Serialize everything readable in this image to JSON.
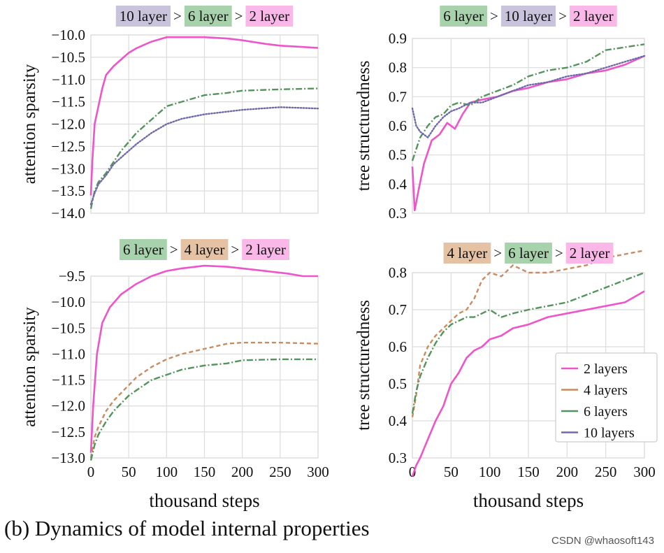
{
  "caption": "(b) Dynamics of model internal properties",
  "watermark": "CSDN @whaosoft143",
  "colors": {
    "2": "#ee55c8",
    "4": "#c98b60",
    "6": "#55935d",
    "10": "#6e6aa8",
    "bg2": "#f9b8e8",
    "bg4": "#e6c2a5",
    "bg6": "#a8d2ac",
    "bg10": "#c9c3dc"
  },
  "chart_data": [
    {
      "type": "line",
      "id": "tl",
      "ylabel": "attention sparsity",
      "xlabel": "",
      "xlim": [
        0,
        300
      ],
      "ylim": [
        -14.0,
        -10.0
      ],
      "xticks": [],
      "yticks": [
        -10.0,
        -10.5,
        -11.0,
        -11.5,
        -12.0,
        -12.5,
        -13.0,
        -13.5,
        -14.0
      ],
      "ytick_labels": [
        "−10.0",
        "−10.5",
        "−11.0",
        "−11.5",
        "−12.0",
        "−12.5",
        "−13.0",
        "−13.5",
        "−14.0"
      ],
      "title_parts": [
        {
          "text": "10 layer",
          "series": "10"
        },
        {
          "text": ">",
          "series": null
        },
        {
          "text": "6 layer",
          "series": "6"
        },
        {
          "text": ">",
          "series": null
        },
        {
          "text": "2 layer",
          "series": "2"
        }
      ],
      "series": [
        {
          "key": "2",
          "style": "solid",
          "x": [
            0,
            2,
            5,
            10,
            15,
            20,
            30,
            40,
            50,
            60,
            80,
            100,
            120,
            150,
            180,
            200,
            230,
            250,
            280,
            300
          ],
          "y": [
            -13.6,
            -12.8,
            -12.0,
            -11.6,
            -11.2,
            -10.9,
            -10.7,
            -10.55,
            -10.4,
            -10.3,
            -10.15,
            -10.05,
            -10.05,
            -10.05,
            -10.08,
            -10.12,
            -10.2,
            -10.24,
            -10.27,
            -10.29
          ]
        },
        {
          "key": "6",
          "style": "dashdot",
          "x": [
            0,
            5,
            10,
            20,
            30,
            40,
            50,
            60,
            80,
            100,
            120,
            150,
            180,
            200,
            250,
            300
          ],
          "y": [
            -13.9,
            -13.5,
            -13.3,
            -13.1,
            -12.85,
            -12.6,
            -12.4,
            -12.2,
            -11.9,
            -11.6,
            -11.5,
            -11.35,
            -11.3,
            -11.25,
            -11.22,
            -11.2
          ]
        },
        {
          "key": "10",
          "style": "dotted",
          "x": [
            0,
            5,
            10,
            20,
            30,
            40,
            50,
            60,
            80,
            100,
            120,
            150,
            180,
            200,
            250,
            300
          ],
          "y": [
            -13.8,
            -13.55,
            -13.35,
            -13.15,
            -12.9,
            -12.75,
            -12.6,
            -12.45,
            -12.2,
            -12.0,
            -11.88,
            -11.78,
            -11.72,
            -11.68,
            -11.62,
            -11.65
          ]
        }
      ]
    },
    {
      "type": "line",
      "id": "tr",
      "ylabel": "tree structuredness",
      "xlabel": "",
      "xlim": [
        0,
        300
      ],
      "ylim": [
        0.3,
        0.9
      ],
      "xticks": [],
      "yticks": [
        0.3,
        0.4,
        0.5,
        0.6,
        0.7,
        0.8,
        0.9
      ],
      "ytick_labels": [
        "0.3",
        "0.4",
        "0.5",
        "0.6",
        "0.7",
        "0.8",
        "0.9"
      ],
      "title_parts": [
        {
          "text": "6 layer",
          "series": "6"
        },
        {
          "text": ">",
          "series": null
        },
        {
          "text": "10 layer",
          "series": "10"
        },
        {
          "text": ">",
          "series": null
        },
        {
          "text": "2 layer",
          "series": "2"
        }
      ],
      "series": [
        {
          "key": "2",
          "style": "solid",
          "x": [
            0,
            3,
            8,
            15,
            25,
            35,
            45,
            55,
            65,
            75,
            90,
            110,
            130,
            150,
            175,
            200,
            225,
            250,
            275,
            300
          ],
          "y": [
            0.46,
            0.31,
            0.38,
            0.47,
            0.55,
            0.57,
            0.61,
            0.59,
            0.64,
            0.68,
            0.69,
            0.7,
            0.72,
            0.73,
            0.75,
            0.76,
            0.78,
            0.79,
            0.81,
            0.84
          ]
        },
        {
          "key": "6",
          "style": "dashdot",
          "x": [
            0,
            5,
            10,
            20,
            30,
            40,
            50,
            60,
            75,
            90,
            110,
            130,
            150,
            175,
            200,
            225,
            250,
            275,
            300
          ],
          "y": [
            0.48,
            0.52,
            0.56,
            0.6,
            0.63,
            0.64,
            0.67,
            0.68,
            0.67,
            0.7,
            0.72,
            0.74,
            0.77,
            0.79,
            0.8,
            0.82,
            0.86,
            0.87,
            0.88
          ]
        },
        {
          "key": "10",
          "style": "dotted",
          "x": [
            0,
            5,
            10,
            20,
            30,
            40,
            50,
            60,
            75,
            90,
            110,
            130,
            150,
            175,
            200,
            225,
            250,
            275,
            300
          ],
          "y": [
            0.66,
            0.6,
            0.58,
            0.56,
            0.6,
            0.63,
            0.65,
            0.66,
            0.68,
            0.68,
            0.7,
            0.72,
            0.74,
            0.75,
            0.77,
            0.78,
            0.8,
            0.82,
            0.84
          ]
        }
      ]
    },
    {
      "type": "line",
      "id": "bl",
      "ylabel": "attention sparsity",
      "xlabel": "thousand steps",
      "xlim": [
        0,
        300
      ],
      "ylim": [
        -13.0,
        -9.5
      ],
      "xticks": [
        0,
        50,
        100,
        150,
        200,
        250,
        300
      ],
      "yticks": [
        -9.5,
        -10.0,
        -10.5,
        -11.0,
        -11.5,
        -12.0,
        -12.5,
        -13.0
      ],
      "ytick_labels": [
        "−9.5",
        "−10.0",
        "−10.5",
        "−11.0",
        "−11.5",
        "−12.0",
        "−12.5",
        "−13.0"
      ],
      "title_parts": [
        {
          "text": "6 layer",
          "series": "6"
        },
        {
          "text": ">",
          "series": null
        },
        {
          "text": "4 layer",
          "series": "4"
        },
        {
          "text": ">",
          "series": null
        },
        {
          "text": "2 layer",
          "series": "2"
        }
      ],
      "series": [
        {
          "key": "2",
          "style": "solid",
          "x": [
            0,
            3,
            8,
            15,
            25,
            40,
            60,
            80,
            100,
            120,
            150,
            180,
            200,
            230,
            260,
            280,
            300
          ],
          "y": [
            -12.9,
            -12.0,
            -11.0,
            -10.4,
            -10.1,
            -9.85,
            -9.65,
            -9.5,
            -9.4,
            -9.35,
            -9.3,
            -9.32,
            -9.35,
            -9.4,
            -9.45,
            -9.5,
            -9.5
          ]
        },
        {
          "key": "4",
          "style": "dashed",
          "x": [
            0,
            5,
            10,
            20,
            30,
            40,
            50,
            60,
            80,
            100,
            120,
            150,
            180,
            200,
            250,
            300
          ],
          "y": [
            -13.0,
            -12.6,
            -12.4,
            -12.1,
            -11.9,
            -11.75,
            -11.6,
            -11.45,
            -11.25,
            -11.1,
            -11.0,
            -10.9,
            -10.8,
            -10.78,
            -10.78,
            -10.8
          ]
        },
        {
          "key": "6",
          "style": "dashdot",
          "x": [
            0,
            5,
            10,
            20,
            30,
            40,
            50,
            60,
            80,
            100,
            120,
            150,
            180,
            200,
            250,
            300
          ],
          "y": [
            -13.05,
            -12.75,
            -12.55,
            -12.3,
            -12.1,
            -11.95,
            -11.8,
            -11.7,
            -11.5,
            -11.4,
            -11.3,
            -11.22,
            -11.18,
            -11.12,
            -11.1,
            -11.1
          ]
        }
      ]
    },
    {
      "type": "line",
      "id": "br",
      "ylabel": "tree structuredness",
      "xlabel": "thousand steps",
      "xlim": [
        0,
        300
      ],
      "ylim": [
        0.3,
        0.8
      ],
      "xticks": [
        0,
        50,
        100,
        150,
        200,
        250,
        300
      ],
      "yticks": [
        0.3,
        0.4,
        0.5,
        0.6,
        0.7,
        0.8
      ],
      "ytick_labels": [
        "0.3",
        "0.4",
        "0.5",
        "0.6",
        "0.7",
        "0.8"
      ],
      "title_parts": [
        {
          "text": "4 layer",
          "series": "4"
        },
        {
          "text": ">",
          "series": null
        },
        {
          "text": "6 layer",
          "series": "6"
        },
        {
          "text": ">",
          "series": null
        },
        {
          "text": "2 layer",
          "series": "2"
        }
      ],
      "legend": {
        "position": "lower-right",
        "entries": [
          {
            "label": "2 layers",
            "key": "2"
          },
          {
            "label": "4 layers",
            "key": "4"
          },
          {
            "label": "6 layers",
            "key": "6"
          },
          {
            "label": "10 layers",
            "key": "10"
          }
        ]
      },
      "series": [
        {
          "key": "2",
          "style": "solid",
          "x": [
            0,
            5,
            10,
            20,
            30,
            40,
            50,
            60,
            70,
            80,
            90,
            100,
            115,
            130,
            150,
            175,
            200,
            225,
            250,
            275,
            300
          ],
          "y": [
            0.25,
            0.28,
            0.3,
            0.35,
            0.4,
            0.44,
            0.5,
            0.53,
            0.57,
            0.59,
            0.6,
            0.62,
            0.63,
            0.65,
            0.66,
            0.68,
            0.69,
            0.7,
            0.71,
            0.72,
            0.75
          ]
        },
        {
          "key": "4",
          "style": "dashed",
          "x": [
            0,
            5,
            10,
            20,
            30,
            40,
            50,
            60,
            70,
            80,
            90,
            100,
            115,
            130,
            150,
            175,
            200,
            225,
            250,
            275,
            300
          ],
          "y": [
            0.41,
            0.47,
            0.55,
            0.6,
            0.63,
            0.65,
            0.67,
            0.69,
            0.7,
            0.73,
            0.78,
            0.8,
            0.79,
            0.82,
            0.8,
            0.8,
            0.81,
            0.82,
            0.84,
            0.85,
            0.86
          ]
        },
        {
          "key": "6",
          "style": "dashdot",
          "x": [
            0,
            5,
            10,
            20,
            30,
            40,
            50,
            60,
            70,
            80,
            90,
            100,
            115,
            130,
            150,
            175,
            200,
            225,
            250,
            275,
            300
          ],
          "y": [
            0.42,
            0.48,
            0.52,
            0.57,
            0.61,
            0.64,
            0.66,
            0.67,
            0.68,
            0.68,
            0.69,
            0.7,
            0.68,
            0.69,
            0.7,
            0.71,
            0.72,
            0.74,
            0.76,
            0.78,
            0.8
          ]
        }
      ]
    }
  ]
}
